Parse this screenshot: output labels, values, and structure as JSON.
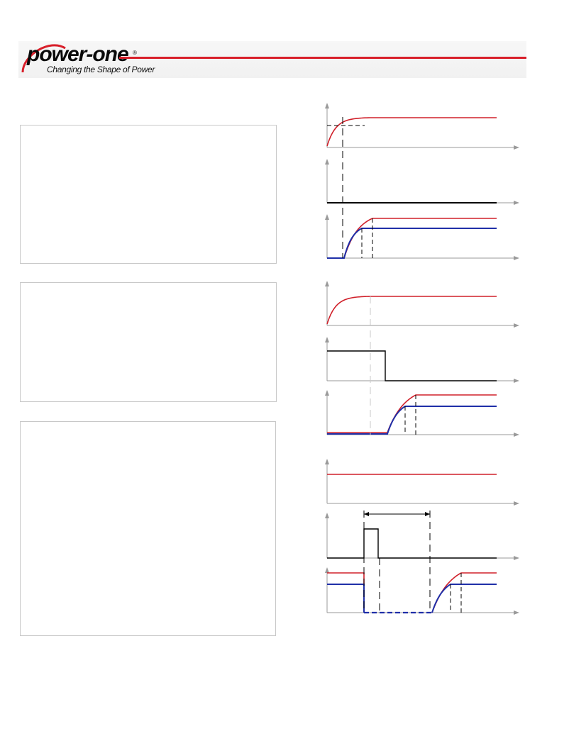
{
  "header": {
    "brand": "power-one",
    "registered_mark": "®",
    "tagline": "Changing the Shape of Power",
    "brand_color": "#d81f2a"
  },
  "text_boxes": [
    {
      "id": "box-1",
      "text": ""
    },
    {
      "id": "box-2",
      "text": ""
    },
    {
      "id": "box-3",
      "text": ""
    }
  ],
  "timing_diagram": {
    "colors": {
      "primary_output": "#d0202a",
      "secondary_output": "#1f2fa8",
      "control": "#000000",
      "axis": "#9a9a9a",
      "marker": "#000000",
      "inhibit_guide": "#c8c8c8"
    },
    "panels": [
      {
        "group": "input-startup",
        "signal": "input-voltage",
        "shape": "exponential rise to steady level"
      },
      {
        "group": "input-startup",
        "signal": "inhibit",
        "shape": "held low"
      },
      {
        "group": "input-startup",
        "signal": "outputs",
        "shape": "delayed ramp to two regulated levels"
      },
      {
        "group": "inhibit-release",
        "signal": "input-voltage",
        "shape": "exponential rise to steady level"
      },
      {
        "group": "inhibit-release",
        "signal": "inhibit",
        "shape": "high then released low"
      },
      {
        "group": "inhibit-release",
        "signal": "outputs",
        "shape": "ramp after inhibit release"
      },
      {
        "group": "inhibit-pulse",
        "signal": "input-voltage",
        "shape": "constant"
      },
      {
        "group": "inhibit-pulse",
        "signal": "inhibit",
        "shape": "single pulse"
      },
      {
        "group": "inhibit-pulse",
        "signal": "outputs",
        "shape": "shutdown, off interval, restart"
      }
    ]
  }
}
